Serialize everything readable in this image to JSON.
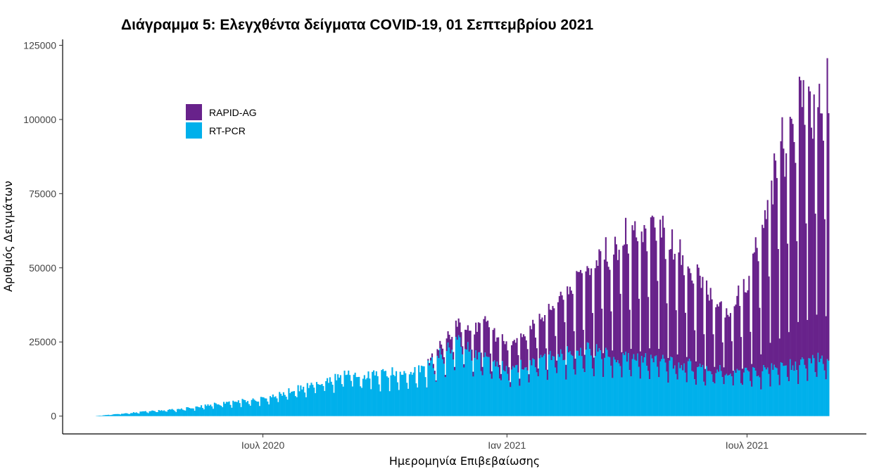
{
  "chart_data": {
    "type": "bar",
    "stacked": true,
    "title": "Διάγραμμα 5: Ελεγχθέντα δείγματα COVID-19, 01 Σεπτεμβρίου 2021",
    "xlabel": "Ημερομηνία Επιβεβαίωσης",
    "ylabel": "Αριθμός Δειγμάτων",
    "x_start": "2020-02-26",
    "x_end": "2021-08-31",
    "xlim": [
      "2020-02-01",
      "2021-09-29"
    ],
    "ylim": [
      -6000,
      127000
    ],
    "y_ticks": [
      0,
      25000,
      50000,
      75000,
      100000,
      125000
    ],
    "x_ticks": [
      {
        "date": "2020-07-01",
        "label": "Ιουλ 2020"
      },
      {
        "date": "2021-01-01",
        "label": "Ιαν 2021"
      },
      {
        "date": "2021-07-01",
        "label": "Ιουλ 2021"
      }
    ],
    "grid": false,
    "legend_position": "top-left",
    "series": [
      {
        "name": "RAPID-AG",
        "color": "#68228b",
        "weekly_profile": [
          {
            "date": "2020-02-26",
            "value": 0
          },
          {
            "date": "2020-10-31",
            "value": 0
          },
          {
            "date": "2020-11-15",
            "value": 4000
          },
          {
            "date": "2020-12-01",
            "value": 6000
          },
          {
            "date": "2020-12-15",
            "value": 12000
          },
          {
            "date": "2021-01-01",
            "value": 8000
          },
          {
            "date": "2021-02-01",
            "value": 15000
          },
          {
            "date": "2021-03-01",
            "value": 28000
          },
          {
            "date": "2021-04-01",
            "value": 42000
          },
          {
            "date": "2021-04-20",
            "value": 48000
          },
          {
            "date": "2021-05-15",
            "value": 36000
          },
          {
            "date": "2021-06-15",
            "value": 22000
          },
          {
            "date": "2021-07-01",
            "value": 30000
          },
          {
            "date": "2021-07-20",
            "value": 65000
          },
          {
            "date": "2021-08-10",
            "value": 88000
          },
          {
            "date": "2021-08-31",
            "value": 90000
          }
        ]
      },
      {
        "name": "RT-PCR",
        "color": "#00b0eb",
        "weekly_profile": [
          {
            "date": "2020-02-26",
            "value": 80
          },
          {
            "date": "2020-03-15",
            "value": 800
          },
          {
            "date": "2020-04-01",
            "value": 1500
          },
          {
            "date": "2020-05-01",
            "value": 2500
          },
          {
            "date": "2020-06-01",
            "value": 4500
          },
          {
            "date": "2020-07-01",
            "value": 6000
          },
          {
            "date": "2020-08-01",
            "value": 10000
          },
          {
            "date": "2020-09-01",
            "value": 14000
          },
          {
            "date": "2020-10-01",
            "value": 14500
          },
          {
            "date": "2020-10-31",
            "value": 16000
          },
          {
            "date": "2020-11-10",
            "value": 21000
          },
          {
            "date": "2020-11-25",
            "value": 25000
          },
          {
            "date": "2020-12-15",
            "value": 20000
          },
          {
            "date": "2021-01-01",
            "value": 16000
          },
          {
            "date": "2021-02-01",
            "value": 20000
          },
          {
            "date": "2021-03-01",
            "value": 23000
          },
          {
            "date": "2021-04-01",
            "value": 20000
          },
          {
            "date": "2021-05-01",
            "value": 19000
          },
          {
            "date": "2021-06-01",
            "value": 16000
          },
          {
            "date": "2021-07-01",
            "value": 15000
          },
          {
            "date": "2021-08-01",
            "value": 17000
          },
          {
            "date": "2021-08-31",
            "value": 21000
          }
        ]
      }
    ],
    "weekday_factors": [
      0.22,
      1.0,
      1.0,
      0.97,
      0.95,
      0.92,
      0.55
    ]
  }
}
